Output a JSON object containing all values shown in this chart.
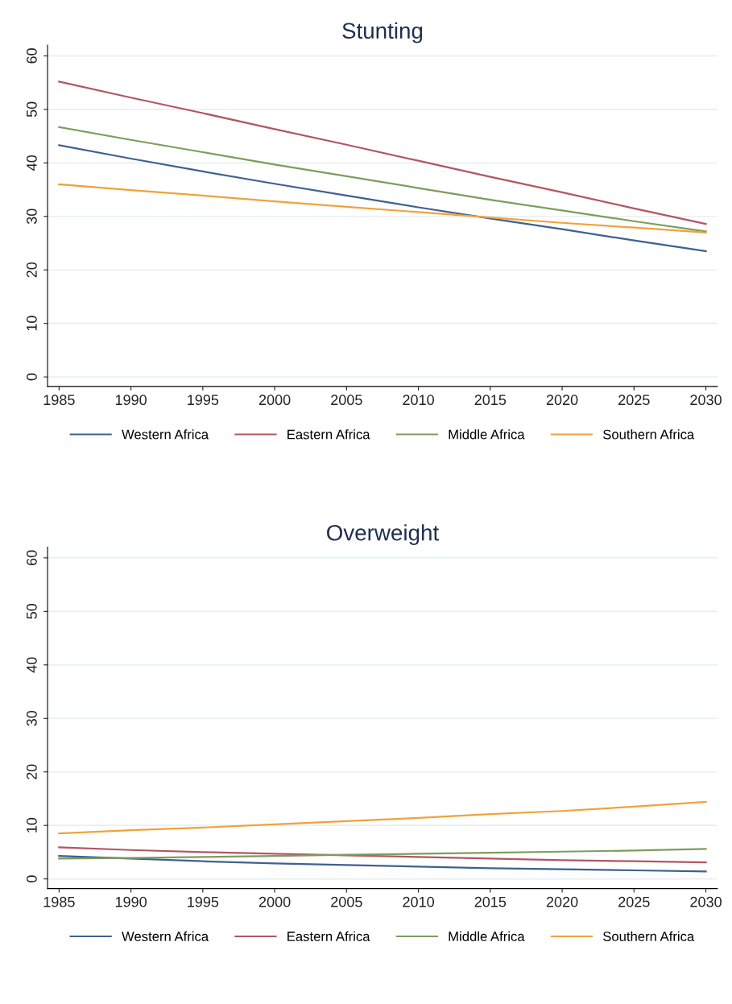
{
  "chart_data": [
    {
      "type": "line",
      "title": "Stunting",
      "x": [
        1985,
        1990,
        1995,
        2000,
        2005,
        2010,
        2015,
        2020,
        2025,
        2030
      ],
      "series": [
        {
          "name": "Western Africa",
          "color": "#3f6190",
          "values": [
            43.3,
            40.8,
            38.4,
            36.1,
            33.9,
            31.7,
            29.6,
            27.6,
            25.5,
            23.5
          ]
        },
        {
          "name": "Eastern Africa",
          "color": "#b25664",
          "values": [
            55.2,
            52.2,
            49.3,
            46.3,
            43.4,
            40.4,
            37.4,
            34.5,
            31.5,
            28.6
          ]
        },
        {
          "name": "Middle Africa",
          "color": "#7d9d5c",
          "values": [
            46.7,
            44.3,
            42.0,
            39.7,
            37.5,
            35.3,
            33.1,
            31.1,
            29.1,
            27.2
          ]
        },
        {
          "name": "Southern Africa",
          "color": "#f0a23a",
          "values": [
            36.0,
            34.9,
            33.9,
            32.8,
            31.8,
            30.8,
            29.8,
            28.8,
            27.9,
            27.0
          ]
        }
      ],
      "xlim": [
        1984.2,
        2030.8
      ],
      "xticks": [
        1985,
        1990,
        1995,
        2000,
        2005,
        2010,
        2015,
        2020,
        2025,
        2030
      ],
      "ylim": [
        -1.8,
        62
      ],
      "yticks": [
        0,
        10,
        20,
        30,
        40,
        50,
        60
      ],
      "grid": "y",
      "legend": "bottom",
      "marker": "none",
      "line_style": "solid"
    },
    {
      "type": "line",
      "title": "Overweight",
      "x": [
        1985,
        1990,
        1995,
        2000,
        2005,
        2010,
        2015,
        2020,
        2025,
        2030
      ],
      "series": [
        {
          "name": "Western Africa",
          "color": "#3f6190",
          "values": [
            4.3,
            3.8,
            3.3,
            2.9,
            2.6,
            2.3,
            2.0,
            1.8,
            1.6,
            1.4
          ]
        },
        {
          "name": "Eastern Africa",
          "color": "#b25664",
          "values": [
            5.9,
            5.4,
            5.0,
            4.7,
            4.4,
            4.1,
            3.8,
            3.5,
            3.3,
            3.1
          ]
        },
        {
          "name": "Middle Africa",
          "color": "#7d9d5c",
          "values": [
            3.8,
            3.9,
            4.1,
            4.3,
            4.5,
            4.7,
            4.9,
            5.1,
            5.3,
            5.6
          ]
        },
        {
          "name": "Southern Africa",
          "color": "#f0a23a",
          "values": [
            8.5,
            9.1,
            9.6,
            10.2,
            10.8,
            11.4,
            12.1,
            12.7,
            13.5,
            14.4
          ]
        }
      ],
      "xlim": [
        1984.2,
        2030.8
      ],
      "xticks": [
        1985,
        1990,
        1995,
        2000,
        2005,
        2010,
        2015,
        2020,
        2025,
        2030
      ],
      "ylim": [
        -1.8,
        62
      ],
      "yticks": [
        0,
        10,
        20,
        30,
        40,
        50,
        60
      ],
      "grid": "y",
      "legend": "bottom",
      "marker": "none",
      "line_style": "solid"
    }
  ]
}
